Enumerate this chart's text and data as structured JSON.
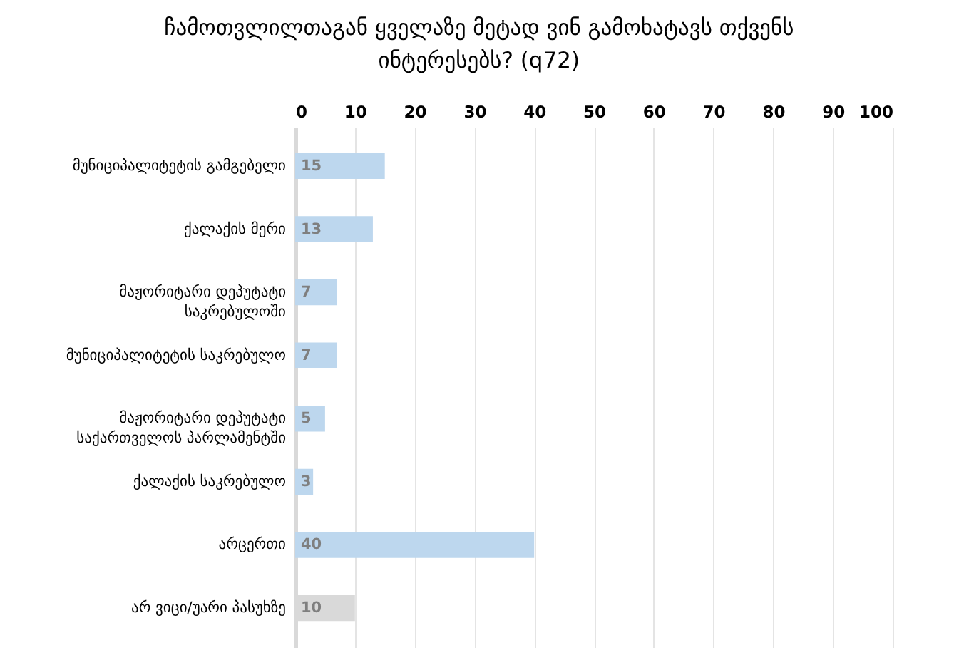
{
  "chart_data": {
    "type": "bar",
    "orientation": "horizontal",
    "title": "ჩამოთვლილთაგან ყველაზე მეტად ვინ გამოხატავს თქვენს ინტერესებს? (q72)",
    "categories": [
      "მუნიციპალიტეტის გამგებელი",
      "ქალაქის მერი",
      "მაჟორიტარი დეპუტატი საკრებულოში",
      "მუნიციპალიტეტის საკრებულო",
      "მაჟორიტარი დეპუტატი საქართველოს პარლამენტში",
      "ქალაქის საკრებულო",
      "არცერთი",
      "არ ვიცი/უარი პასუხზე"
    ],
    "values": [
      15,
      13,
      7,
      7,
      5,
      3,
      40,
      10
    ],
    "colors": [
      "#bdd7ee",
      "#bdd7ee",
      "#bdd7ee",
      "#bdd7ee",
      "#bdd7ee",
      "#bdd7ee",
      "#bdd7ee",
      "#d9d9d9"
    ],
    "xlim": [
      0,
      100
    ],
    "xticks": [
      0,
      10,
      20,
      30,
      40,
      50,
      60,
      70,
      80,
      90,
      100
    ],
    "grid": "x",
    "data_labels": true
  }
}
